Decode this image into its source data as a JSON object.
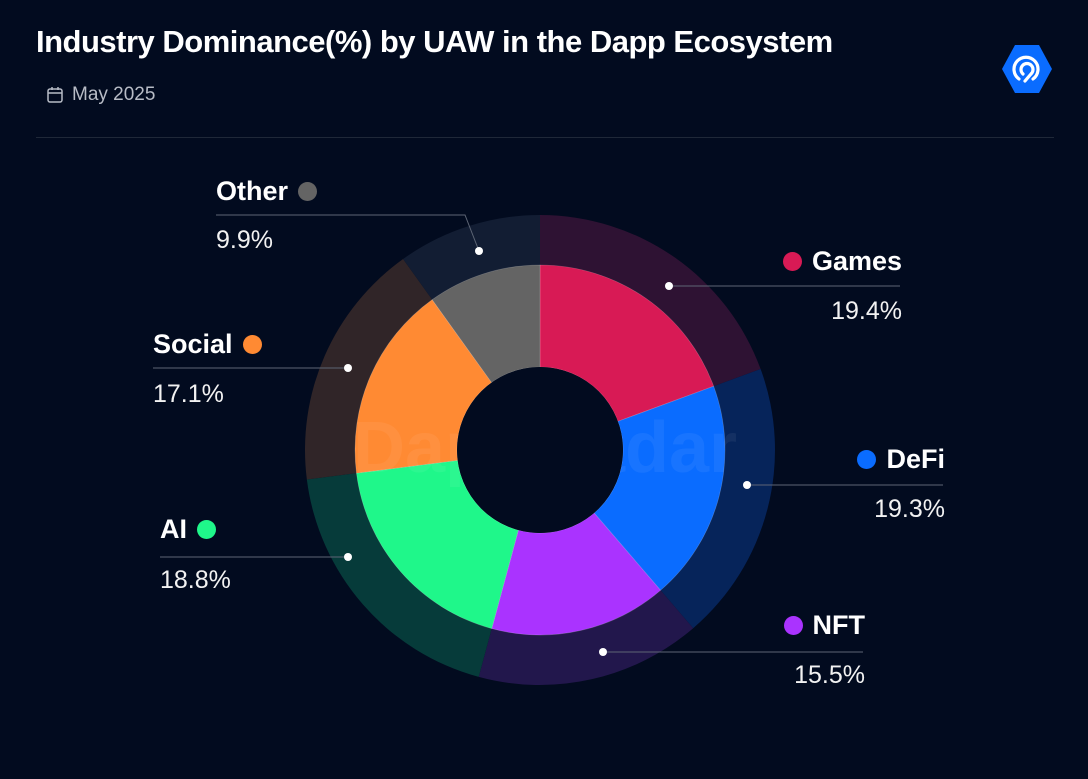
{
  "header": {
    "title": "Industry Dominance(%) by UAW in the Dapp Ecosystem",
    "date": "May 2025",
    "calendar_icon": "calendar-icon",
    "logo_icon": "dappradar-logo-icon"
  },
  "watermark": "DappRadar",
  "chart_data": {
    "type": "pie",
    "variant": "donut",
    "title": "Industry Dominance(%) by UAW in the Dapp Ecosystem",
    "subtitle": "May 2025",
    "unit": "%",
    "slices": [
      {
        "label": "Games",
        "value": 19.4,
        "display": "19.4%",
        "color": "#d81a55",
        "outer_color": "#2e1233"
      },
      {
        "label": "DeFi",
        "value": 19.3,
        "display": "19.3%",
        "color": "#0a6cff",
        "outer_color": "#06245a"
      },
      {
        "label": "NFT",
        "value": 15.5,
        "display": "15.5%",
        "color": "#aa33ff",
        "outer_color": "#22174c"
      },
      {
        "label": "AI",
        "value": 18.8,
        "display": "18.8%",
        "color": "#1ff78a",
        "outer_color": "#063b3a"
      },
      {
        "label": "Social",
        "value": 17.1,
        "display": "17.1%",
        "color": "#ff8a33",
        "outer_color": "#302528"
      },
      {
        "label": "Other",
        "value": 9.9,
        "display": "9.9%",
        "color": "#646464",
        "outer_color": "#121d33"
      }
    ]
  }
}
